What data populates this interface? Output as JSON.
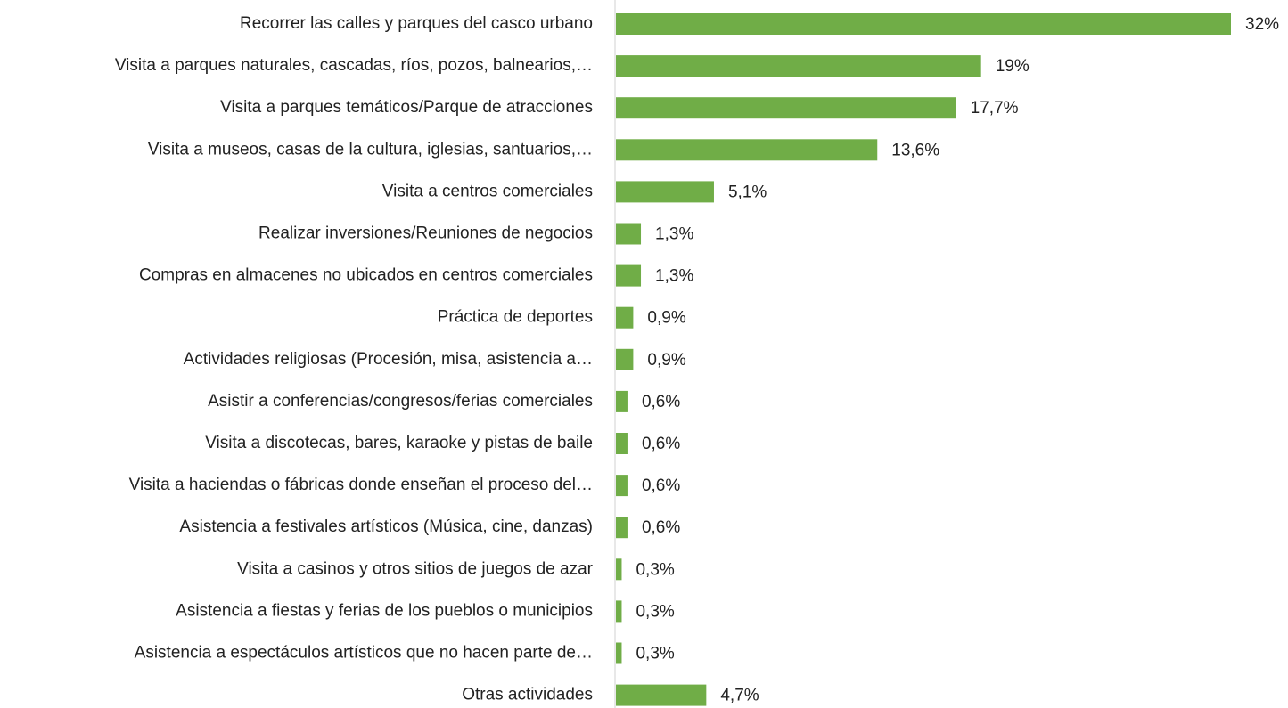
{
  "chart_data": {
    "type": "bar",
    "orientation": "horizontal",
    "color": "#70ad47",
    "categories": [
      "Recorrer las calles y parques del casco urbano",
      "Visita a parques naturales, cascadas, ríos, pozos, balnearios,…",
      "Visita a parques temáticos/Parque de atracciones",
      "Visita a museos, casas de la cultura, iglesias, santuarios,…",
      "Visita a centros comerciales",
      "Realizar inversiones/Reuniones de negocios",
      "Compras en almacenes no ubicados en centros comerciales",
      "Práctica de deportes",
      "Actividades religiosas (Procesión, misa, asistencia a…",
      "Asistir a conferencias/congresos/ferias comerciales",
      "Visita a discotecas, bares, karaoke y pistas de baile",
      "Visita a haciendas o fábricas donde enseñan el proceso del…",
      "Asistencia a festivales artísticos (Música, cine, danzas)",
      "Visita a casinos y otros sitios de juegos de azar",
      "Asistencia a fiestas y ferias de los pueblos o municipios",
      "Asistencia a espectáculos artísticos que no hacen parte de…",
      "Otras actividades"
    ],
    "values": [
      32,
      19,
      17.7,
      13.6,
      5.1,
      1.3,
      1.3,
      0.9,
      0.9,
      0.6,
      0.6,
      0.6,
      0.6,
      0.3,
      0.3,
      0.3,
      4.7
    ],
    "value_labels": [
      "32%",
      "19%",
      "17,7%",
      "13,6%",
      "5,1%",
      "1,3%",
      "1,3%",
      "0,9%",
      "0,9%",
      "0,6%",
      "0,6%",
      "0,6%",
      "0,6%",
      "0,3%",
      "0,3%",
      "0,3%",
      "4,7%"
    ]
  }
}
